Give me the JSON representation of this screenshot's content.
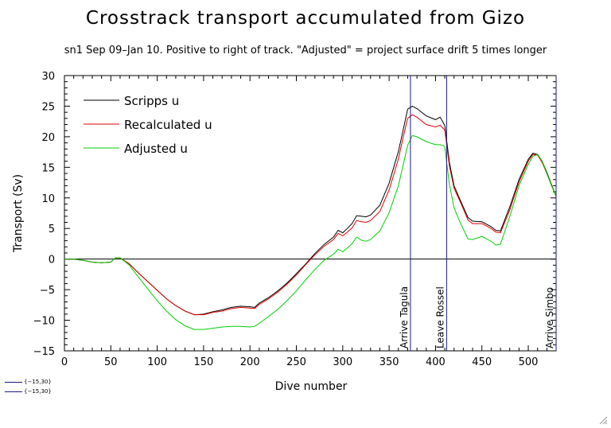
{
  "header": {
    "title": "Crosstrack transport accumulated from Gizo",
    "subtitle": "sn1 Sep 09–Jan 10. Positive to right of track. \"Adjusted\" = project surface drift 5 times longer"
  },
  "footnote": {
    "lines": [
      "{−15,30}",
      "{−15,30}"
    ]
  },
  "chart_data": {
    "type": "line",
    "title": "Crosstrack transport accumulated from Gizo",
    "subtitle": "sn1 Sep 09–Jan 10. Positive to right of track. \"Adjusted\" = project surface drift 5 times longer",
    "xlabel": "Dive number",
    "ylabel": "Transport (Sv)",
    "xlim": [
      0,
      530
    ],
    "ylim": [
      -15,
      30
    ],
    "xticks": [
      0,
      50,
      100,
      150,
      200,
      250,
      300,
      350,
      400,
      450,
      500
    ],
    "yticks": [
      -15,
      -10,
      -5,
      0,
      5,
      10,
      15,
      20,
      25,
      30
    ],
    "xtick_labels": [
      "0",
      "50",
      "100",
      "150",
      "200",
      "250",
      "300",
      "350",
      "400",
      "450",
      "500"
    ],
    "ytick_labels": [
      "−15",
      "−10",
      "−5",
      "0",
      "5",
      "10",
      "15",
      "20",
      "25",
      "30"
    ],
    "grid": false,
    "legend_position": "top-left",
    "zero_line": true,
    "series": [
      {
        "name": "Scripps u",
        "color": "#000000",
        "x": [
          0,
          10,
          20,
          30,
          40,
          50,
          55,
          60,
          65,
          70,
          80,
          90,
          100,
          110,
          120,
          130,
          140,
          150,
          160,
          170,
          180,
          190,
          200,
          205,
          210,
          220,
          230,
          240,
          250,
          260,
          270,
          280,
          290,
          295,
          300,
          305,
          310,
          315,
          320,
          325,
          330,
          340,
          350,
          355,
          360,
          365,
          370,
          375,
          380,
          390,
          400,
          405,
          408,
          410,
          415,
          420,
          425,
          430,
          435,
          440,
          450,
          460,
          465,
          470,
          480,
          490,
          500,
          505,
          510,
          515,
          520,
          525,
          530
        ],
        "values": [
          0.0,
          0.0,
          -0.2,
          -0.5,
          -0.6,
          -0.5,
          0.2,
          0.2,
          -0.3,
          -0.8,
          -2.3,
          -3.7,
          -5.1,
          -6.5,
          -7.6,
          -8.5,
          -9.1,
          -9.0,
          -8.6,
          -8.3,
          -7.9,
          -7.7,
          -7.8,
          -7.9,
          -7.2,
          -6.3,
          -5.2,
          -3.9,
          -2.4,
          -0.8,
          0.9,
          2.4,
          3.6,
          4.7,
          4.3,
          5.0,
          5.8,
          7.1,
          7.0,
          6.9,
          7.2,
          8.8,
          12.4,
          15.0,
          17.6,
          21.0,
          24.5,
          25.0,
          24.6,
          23.4,
          22.8,
          23.2,
          22.4,
          21.8,
          15.8,
          12.0,
          10.2,
          8.5,
          6.8,
          6.2,
          6.1,
          5.3,
          4.7,
          4.6,
          8.5,
          13.0,
          16.3,
          17.3,
          17.1,
          16.0,
          14.2,
          12.2,
          10.3
        ]
      },
      {
        "name": "Recalculated u",
        "color": "#e00000",
        "x": [
          0,
          10,
          20,
          30,
          40,
          50,
          55,
          60,
          65,
          70,
          80,
          90,
          100,
          110,
          120,
          130,
          140,
          150,
          160,
          170,
          180,
          190,
          200,
          205,
          210,
          220,
          230,
          240,
          250,
          260,
          270,
          280,
          290,
          295,
          300,
          305,
          310,
          315,
          320,
          325,
          330,
          340,
          350,
          355,
          360,
          365,
          370,
          375,
          380,
          390,
          400,
          405,
          408,
          410,
          415,
          420,
          425,
          430,
          435,
          440,
          450,
          460,
          465,
          470,
          480,
          490,
          500,
          505,
          510,
          515,
          520,
          525,
          530
        ],
        "values": [
          0.0,
          0.0,
          -0.2,
          -0.5,
          -0.6,
          -0.5,
          0.2,
          0.2,
          -0.3,
          -0.8,
          -2.3,
          -3.7,
          -5.1,
          -6.5,
          -7.6,
          -8.5,
          -9.1,
          -9.1,
          -8.7,
          -8.5,
          -8.1,
          -7.9,
          -8.0,
          -8.1,
          -7.4,
          -6.5,
          -5.4,
          -4.1,
          -2.6,
          -0.9,
          0.7,
          2.1,
          3.2,
          4.2,
          3.8,
          4.4,
          5.1,
          6.3,
          6.1,
          6.0,
          6.3,
          7.8,
          11.3,
          13.8,
          16.4,
          19.8,
          23.0,
          23.6,
          23.2,
          22.0,
          21.6,
          21.9,
          21.4,
          21.1,
          15.2,
          11.6,
          9.9,
          8.2,
          6.4,
          5.8,
          5.8,
          5.0,
          4.4,
          4.3,
          8.0,
          12.6,
          16.0,
          17.1,
          17.0,
          15.8,
          14.0,
          12.1,
          10.2
        ]
      },
      {
        "name": "Adjusted u",
        "color": "#00d000",
        "x": [
          0,
          10,
          20,
          30,
          40,
          50,
          55,
          60,
          65,
          70,
          80,
          90,
          100,
          110,
          120,
          130,
          140,
          150,
          160,
          170,
          180,
          190,
          200,
          205,
          210,
          220,
          230,
          240,
          250,
          260,
          270,
          280,
          290,
          295,
          300,
          305,
          310,
          315,
          320,
          325,
          330,
          340,
          350,
          355,
          360,
          365,
          370,
          375,
          380,
          390,
          400,
          405,
          408,
          410,
          415,
          420,
          425,
          430,
          435,
          440,
          450,
          460,
          465,
          470,
          480,
          490,
          500,
          505,
          510,
          515,
          520,
          525,
          530
        ],
        "values": [
          0.0,
          0.0,
          -0.2,
          -0.5,
          -0.6,
          -0.5,
          0.2,
          0.2,
          -0.4,
          -1.0,
          -3.0,
          -4.9,
          -6.8,
          -8.5,
          -9.9,
          -10.9,
          -11.5,
          -11.5,
          -11.3,
          -11.1,
          -11.0,
          -11.0,
          -11.1,
          -11.0,
          -10.5,
          -9.4,
          -8.2,
          -6.8,
          -5.2,
          -3.4,
          -1.7,
          -0.2,
          0.8,
          1.6,
          1.2,
          1.8,
          2.5,
          3.6,
          3.1,
          2.9,
          3.2,
          4.6,
          7.6,
          9.8,
          12.0,
          15.3,
          18.6,
          20.2,
          20.0,
          19.2,
          18.7,
          18.7,
          18.6,
          18.3,
          12.2,
          8.4,
          6.5,
          4.9,
          3.3,
          3.2,
          3.7,
          2.9,
          2.3,
          2.4,
          6.9,
          12.0,
          15.5,
          16.8,
          17.1,
          16.0,
          14.0,
          12.0,
          10.3
        ]
      }
    ],
    "vlines": [
      {
        "x": 373,
        "label": "Arrive Tagula",
        "color": "#1a1a8a"
      },
      {
        "x": 412,
        "label": "Leave Rossel",
        "color": "#1a1a8a"
      },
      {
        "x": 530,
        "label": "Arrive Simbo",
        "color": "#1a1a8a"
      }
    ]
  }
}
